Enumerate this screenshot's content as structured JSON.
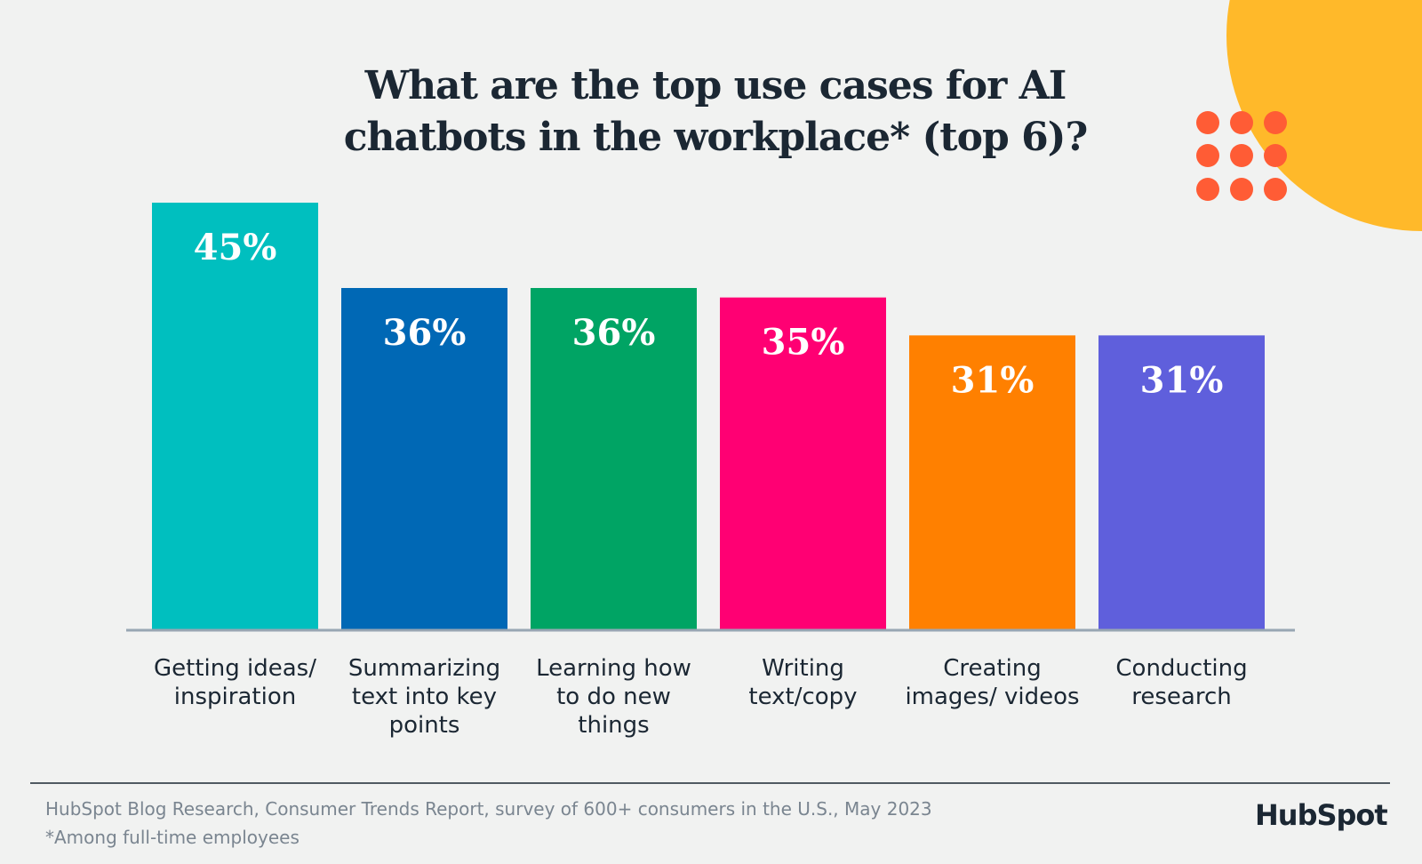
{
  "chart_data": {
    "type": "bar",
    "title": "What are the top use cases for AI chatbots in the workplace* (top 6)?",
    "categories": [
      "Getting ideas/ inspiration",
      "Summarizing text into key points",
      "Learning how to do new things",
      "Writing text/copy",
      "Creating images/ videos",
      "Conducting research"
    ],
    "values": [
      45,
      36,
      36,
      35,
      31,
      31
    ],
    "value_labels": [
      "45%",
      "36%",
      "36%",
      "35%",
      "31%",
      "31%"
    ],
    "colors": [
      "#00bfbf",
      "#0068b5",
      "#00a464",
      "#ff0073",
      "#ff8000",
      "#5f5fdc"
    ],
    "source": "HubSpot Blog Research, Consumer Trends Report, survey of 600+ consumers in the U.S., May 2023",
    "footnote": "*Among full-time employees",
    "brand": "HubSpot"
  }
}
